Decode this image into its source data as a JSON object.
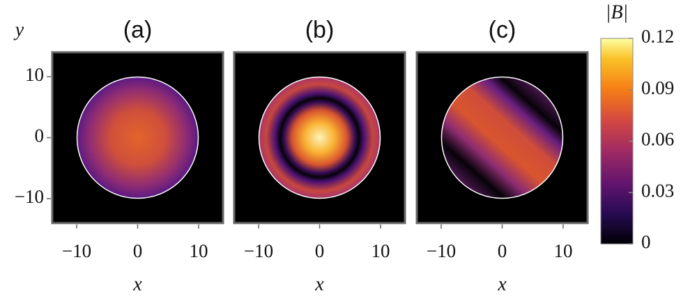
{
  "chart_data": [
    {
      "type": "heatmap",
      "title": "(a)",
      "xlabel": "x",
      "ylabel": "y",
      "xlim": [
        -14,
        14
      ],
      "ylim": [
        -14,
        14
      ],
      "xticks": [
        {
          "value": -10,
          "label": "−10"
        },
        0,
        10
      ],
      "yticks": [
        {
          "value": -10,
          "label": "−10"
        },
        0,
        10
      ]
    },
    {
      "type": "heatmap",
      "title": "(b)",
      "xlabel": "x",
      "xlim": [
        -14,
        14
      ],
      "ylim": [
        -14,
        14
      ],
      "xticks": [
        {
          "value": -10,
          "label": "−10"
        },
        0,
        10
      ]
    },
    {
      "type": "heatmap",
      "title": "(c)",
      "xlabel": "x",
      "xlim": [
        -14,
        14
      ],
      "ylim": [
        -14,
        14
      ],
      "xticks": [
        {
          "value": -10,
          "label": "−10"
        },
        0,
        10
      ]
    },
    {
      "type": "colorbar",
      "title": "|B|",
      "zlim": [
        0,
        0.12
      ],
      "zticks": [
        0,
        0.03,
        0.06,
        0.09,
        0.12
      ]
    }
  ]
}
